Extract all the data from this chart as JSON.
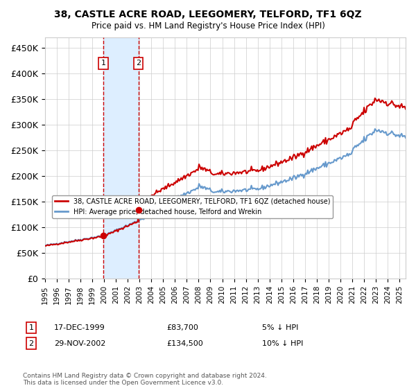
{
  "title": "38, CASTLE ACRE ROAD, LEEGOMERY, TELFORD, TF1 6QZ",
  "subtitle": "Price paid vs. HM Land Registry's House Price Index (HPI)",
  "ylabel_ticks": [
    "£0",
    "£50K",
    "£100K",
    "£150K",
    "£200K",
    "£250K",
    "£300K",
    "£350K",
    "£400K",
    "£450K"
  ],
  "ytick_values": [
    0,
    50000,
    100000,
    150000,
    200000,
    250000,
    300000,
    350000,
    400000,
    450000
  ],
  "ylim": [
    0,
    470000
  ],
  "xlim_start": 1995.0,
  "xlim_end": 2025.5,
  "sale1_date": 1999.96,
  "sale1_price": 83700,
  "sale1_label": "1",
  "sale1_text": "17-DEC-1999",
  "sale1_amount": "£83,700",
  "sale1_hpi": "5% ↓ HPI",
  "sale2_date": 2002.91,
  "sale2_price": 134500,
  "sale2_label": "2",
  "sale2_text": "29-NOV-2002",
  "sale2_amount": "£134,500",
  "sale2_hpi": "10% ↓ HPI",
  "line1_color": "#cc0000",
  "line2_color": "#6699cc",
  "shade_color": "#ddeeff",
  "legend1": "38, CASTLE ACRE ROAD, LEEGOMERY, TELFORD, TF1 6QZ (detached house)",
  "legend2": "HPI: Average price, detached house, Telford and Wrekin",
  "copyright_text": "Contains HM Land Registry data © Crown copyright and database right 2024.\nThis data is licensed under the Open Government Licence v3.0.",
  "background_color": "#ffffff",
  "grid_color": "#cccccc"
}
